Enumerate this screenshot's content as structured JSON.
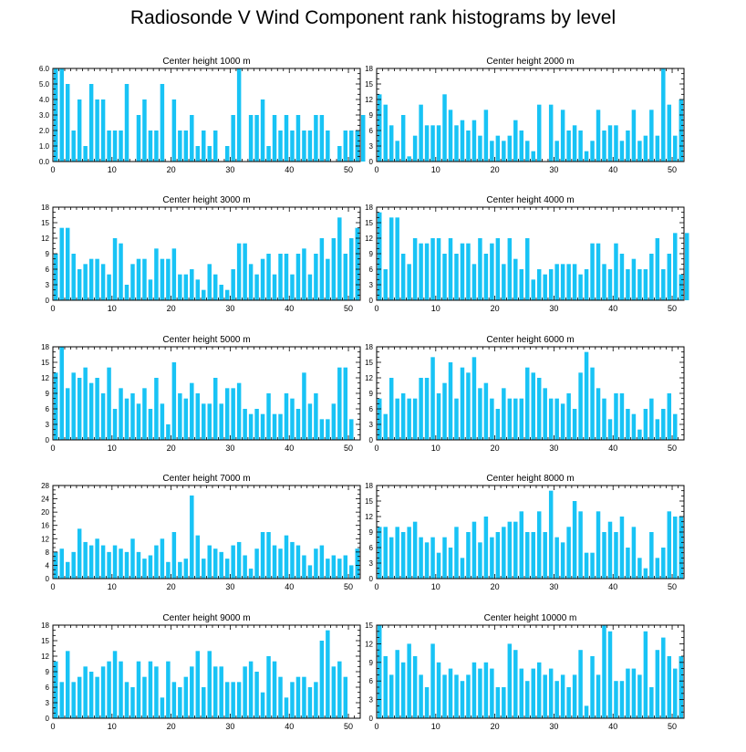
{
  "title": "Radiosonde V Wind Component rank histograms by level",
  "colors": {
    "bar": "#18c3f5",
    "bar_stroke": "#ffffff",
    "axis": "#000000",
    "text": "#000000",
    "background": "#ffffff"
  },
  "chart_data": [
    {
      "type": "bar",
      "title": "Center height 1000 m",
      "xlim": [
        0,
        52
      ],
      "xticks": [
        "0",
        "10",
        "20",
        "30",
        "40",
        "50"
      ],
      "ylim": [
        0,
        6
      ],
      "yticks": [
        "0.0",
        "1.0",
        "2.0",
        "3.0",
        "4.0",
        "5.0",
        "6.0"
      ],
      "values": [
        6,
        6,
        5,
        2,
        4,
        1,
        5,
        4,
        4,
        2,
        2,
        2,
        5,
        0,
        3,
        4,
        2,
        2,
        5,
        0,
        4,
        2,
        2,
        3,
        1,
        2,
        1,
        2,
        0,
        1,
        3,
        6,
        0,
        3,
        3,
        4,
        1,
        3,
        2,
        3,
        2,
        3,
        2,
        2,
        3,
        3,
        2,
        0,
        1,
        2,
        2,
        2,
        3
      ]
    },
    {
      "type": "bar",
      "title": "Center height 2000 m",
      "xlim": [
        0,
        52
      ],
      "xticks": [
        "0",
        "10",
        "20",
        "30",
        "40",
        "50"
      ],
      "ylim": [
        0,
        18
      ],
      "yticks": [
        "0",
        "3",
        "6",
        "9",
        "12",
        "15",
        "18"
      ],
      "values": [
        13,
        11,
        7,
        4,
        9,
        1,
        5,
        11,
        7,
        7,
        7,
        13,
        10,
        7,
        8,
        6,
        8,
        5,
        10,
        4,
        5,
        4,
        5,
        8,
        6,
        4,
        2,
        11,
        0,
        11,
        4,
        10,
        6,
        7,
        6,
        2,
        4,
        10,
        6,
        7,
        7,
        4,
        6,
        10,
        4,
        5,
        10,
        5,
        18,
        11,
        5,
        12
      ]
    },
    {
      "type": "bar",
      "title": "Center height 3000 m",
      "xlim": [
        0,
        52
      ],
      "xticks": [
        "0",
        "10",
        "20",
        "30",
        "40",
        "50"
      ],
      "ylim": [
        0,
        18
      ],
      "yticks": [
        "0",
        "3",
        "6",
        "9",
        "12",
        "15",
        "18"
      ],
      "values": [
        9,
        14,
        14,
        9,
        6,
        7,
        8,
        8,
        7,
        5,
        12,
        11,
        3,
        7,
        8,
        8,
        4,
        10,
        8,
        8,
        10,
        5,
        5,
        6,
        4,
        2,
        7,
        5,
        3,
        2,
        6,
        11,
        11,
        7,
        5,
        8,
        9,
        5,
        9,
        9,
        5,
        9,
        10,
        5,
        9,
        12,
        8,
        12,
        16,
        9,
        12,
        14
      ]
    },
    {
      "type": "bar",
      "title": "Center height 4000 m",
      "xlim": [
        0,
        52
      ],
      "xticks": [
        "0",
        "10",
        "20",
        "30",
        "40",
        "50"
      ],
      "ylim": [
        0,
        18
      ],
      "yticks": [
        "0",
        "3",
        "6",
        "9",
        "12",
        "15",
        "18"
      ],
      "values": [
        17,
        6,
        16,
        16,
        9,
        7,
        12,
        11,
        11,
        12,
        12,
        9,
        12,
        9,
        11,
        11,
        7,
        12,
        9,
        11,
        12,
        7,
        12,
        8,
        6,
        12,
        4,
        6,
        5,
        6,
        7,
        7,
        7,
        7,
        5,
        6,
        11,
        11,
        7,
        6,
        11,
        9,
        6,
        8,
        6,
        6,
        9,
        12,
        6,
        9,
        13,
        5,
        13
      ]
    },
    {
      "type": "bar",
      "title": "Center height 5000 m",
      "xlim": [
        0,
        52
      ],
      "xticks": [
        "0",
        "10",
        "20",
        "30",
        "40",
        "50"
      ],
      "ylim": [
        0,
        18
      ],
      "yticks": [
        "0",
        "3",
        "6",
        "9",
        "12",
        "15",
        "18"
      ],
      "values": [
        13,
        18,
        10,
        13,
        12,
        14,
        11,
        12,
        9,
        14,
        6,
        10,
        8,
        9,
        7,
        10,
        6,
        12,
        7,
        3,
        15,
        9,
        8,
        11,
        9,
        7,
        7,
        12,
        7,
        10,
        10,
        11,
        6,
        5,
        6,
        5,
        9,
        5,
        5,
        9,
        8,
        6,
        13,
        7,
        9,
        4,
        4,
        7,
        14,
        14,
        4
      ]
    },
    {
      "type": "bar",
      "title": "Center height 6000 m",
      "xlim": [
        0,
        52
      ],
      "xticks": [
        "0",
        "10",
        "20",
        "30",
        "40",
        "50"
      ],
      "ylim": [
        0,
        18
      ],
      "yticks": [
        "0",
        "3",
        "6",
        "9",
        "12",
        "15",
        "18"
      ],
      "values": [
        8,
        5,
        12,
        8,
        9,
        8,
        8,
        12,
        12,
        16,
        9,
        11,
        15,
        8,
        14,
        13,
        16,
        10,
        11,
        8,
        6,
        10,
        8,
        8,
        8,
        14,
        13,
        12,
        10,
        8,
        8,
        7,
        9,
        6,
        13,
        17,
        14,
        10,
        8,
        4,
        9,
        9,
        6,
        5,
        2,
        6,
        8,
        4,
        6,
        9,
        5
      ]
    },
    {
      "type": "bar",
      "title": "Center height 7000 m",
      "xlim": [
        0,
        52
      ],
      "xticks": [
        "0",
        "10",
        "20",
        "30",
        "40",
        "50"
      ],
      "ylim": [
        0,
        28
      ],
      "yticks": [
        "0",
        "4",
        "8",
        "12",
        "16",
        "20",
        "24",
        "28"
      ],
      "values": [
        8,
        9,
        5,
        8,
        15,
        11,
        10,
        12,
        10,
        8,
        10,
        9,
        8,
        12,
        8,
        6,
        7,
        10,
        12,
        5,
        14,
        5,
        6,
        25,
        13,
        6,
        10,
        9,
        8,
        6,
        10,
        11,
        7,
        3,
        9,
        14,
        14,
        10,
        9,
        13,
        11,
        10,
        7,
        4,
        9,
        10,
        6,
        7,
        6,
        7,
        4,
        9
      ]
    },
    {
      "type": "bar",
      "title": "Center height 8000 m",
      "xlim": [
        0,
        52
      ],
      "xticks": [
        "0",
        "10",
        "20",
        "30",
        "40",
        "50"
      ],
      "ylim": [
        0,
        18
      ],
      "yticks": [
        "0",
        "3",
        "6",
        "9",
        "12",
        "15",
        "18"
      ],
      "values": [
        10,
        10,
        8,
        10,
        9,
        10,
        11,
        8,
        7,
        8,
        5,
        8,
        6,
        10,
        4,
        9,
        11,
        7,
        12,
        8,
        9,
        10,
        11,
        11,
        13,
        9,
        9,
        13,
        9,
        17,
        8,
        7,
        10,
        15,
        13,
        5,
        5,
        13,
        9,
        11,
        9,
        12,
        6,
        10,
        4,
        2,
        9,
        4,
        6,
        13,
        12,
        12
      ]
    },
    {
      "type": "bar",
      "title": "Center height 9000 m",
      "xlim": [
        0,
        52
      ],
      "xticks": [
        "0",
        "10",
        "20",
        "30",
        "40",
        "50"
      ],
      "ylim": [
        0,
        18
      ],
      "yticks": [
        "0",
        "3",
        "6",
        "9",
        "12",
        "15",
        "18"
      ],
      "values": [
        11,
        7,
        13,
        7,
        8,
        10,
        9,
        8,
        10,
        11,
        13,
        11,
        7,
        6,
        11,
        8,
        11,
        10,
        4,
        11,
        7,
        6,
        8,
        10,
        13,
        6,
        13,
        10,
        10,
        7,
        7,
        7,
        10,
        11,
        9,
        5,
        12,
        11,
        8,
        4,
        7,
        8,
        8,
        6,
        7,
        15,
        17,
        10,
        11,
        8
      ]
    },
    {
      "type": "bar",
      "title": "Center height 10000 m",
      "xlim": [
        0,
        52
      ],
      "xticks": [
        "0",
        "10",
        "20",
        "30",
        "40",
        "50"
      ],
      "ylim": [
        0,
        15
      ],
      "yticks": [
        "0",
        "3",
        "6",
        "9",
        "12",
        "15"
      ],
      "values": [
        15,
        10,
        7,
        11,
        9,
        12,
        10,
        7,
        5,
        12,
        9,
        7,
        8,
        7,
        6,
        7,
        9,
        8,
        9,
        8,
        5,
        5,
        12,
        11,
        8,
        6,
        8,
        9,
        7,
        8,
        6,
        7,
        5,
        7,
        11,
        2,
        10,
        7,
        15,
        14,
        6,
        6,
        8,
        8,
        7,
        14,
        5,
        11,
        13,
        10,
        8,
        10
      ]
    }
  ]
}
